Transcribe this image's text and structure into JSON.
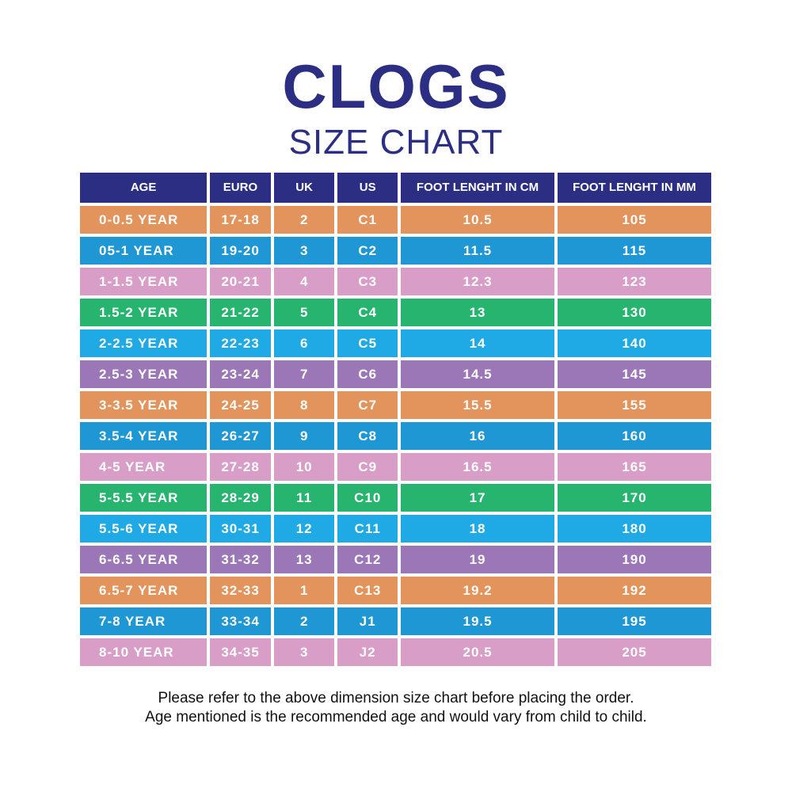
{
  "title": "CLOGS",
  "subtitle": "SIZE CHART",
  "colors": {
    "title": "#2b2e83",
    "header": "#2b2e83",
    "orange": "#e3935c",
    "blue": "#1f97d4",
    "pink": "#d99ec8",
    "green": "#26b46e",
    "sky": "#1fa9e5",
    "purple": "#9b77b8"
  },
  "table": {
    "headers": [
      "AGE",
      "EURO",
      "UK",
      "US",
      "FOOT LENGHT IN CM",
      "FOOT LENGHT IN MM"
    ],
    "rows": [
      {
        "color": "orange",
        "cells": [
          "0-0.5 YEAR",
          "17-18",
          "2",
          "C1",
          "10.5",
          "105"
        ]
      },
      {
        "color": "blue",
        "cells": [
          "05-1 YEAR",
          "19-20",
          "3",
          "C2",
          "11.5",
          "115"
        ]
      },
      {
        "color": "pink",
        "cells": [
          "1-1.5 YEAR",
          "20-21",
          "4",
          "C3",
          "12.3",
          "123"
        ]
      },
      {
        "color": "green",
        "cells": [
          "1.5-2 YEAR",
          "21-22",
          "5",
          "C4",
          "13",
          "130"
        ]
      },
      {
        "color": "sky",
        "cells": [
          "2-2.5 YEAR",
          "22-23",
          "6",
          "C5",
          "14",
          "140"
        ]
      },
      {
        "color": "purple",
        "cells": [
          "2.5-3 YEAR",
          "23-24",
          "7",
          "C6",
          "14.5",
          "145"
        ]
      },
      {
        "color": "orange",
        "cells": [
          "3-3.5 YEAR",
          "24-25",
          "8",
          "C7",
          "15.5",
          "155"
        ]
      },
      {
        "color": "blue",
        "cells": [
          "3.5-4 YEAR",
          "26-27",
          "9",
          "C8",
          "16",
          "160"
        ]
      },
      {
        "color": "pink",
        "cells": [
          "4-5 YEAR",
          "27-28",
          "10",
          "C9",
          "16.5",
          "165"
        ]
      },
      {
        "color": "green",
        "cells": [
          "5-5.5 YEAR",
          "28-29",
          "11",
          "C10",
          "17",
          "170"
        ]
      },
      {
        "color": "sky",
        "cells": [
          "5.5-6 YEAR",
          "30-31",
          "12",
          "C11",
          "18",
          "180"
        ]
      },
      {
        "color": "purple",
        "cells": [
          "6-6.5 YEAR",
          "31-32",
          "13",
          "C12",
          "19",
          "190"
        ]
      },
      {
        "color": "orange",
        "cells": [
          "6.5-7 YEAR",
          "32-33",
          "1",
          "C13",
          "19.2",
          "192"
        ]
      },
      {
        "color": "blue",
        "cells": [
          "7-8 YEAR",
          "33-34",
          "2",
          "J1",
          "19.5",
          "195"
        ]
      },
      {
        "color": "pink",
        "cells": [
          "8-10 YEAR",
          "34-35",
          "3",
          "J2",
          "20.5",
          "205"
        ]
      }
    ]
  },
  "footer": {
    "line1": "Please refer to the above dimension size chart before placing the order.",
    "line2": "Age mentioned is the recommended age and would vary from child to child."
  }
}
